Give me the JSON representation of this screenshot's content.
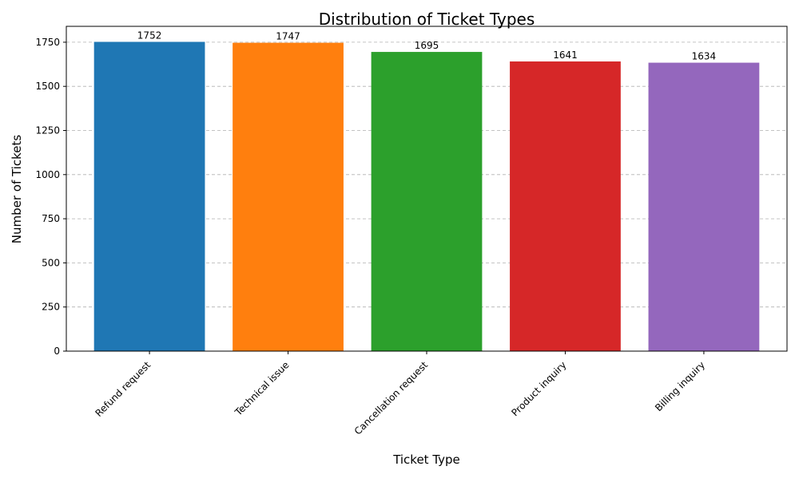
{
  "chart_data": {
    "type": "bar",
    "title": "Distribution of Ticket Types",
    "xlabel": "Ticket Type",
    "ylabel": "Number of Tickets",
    "categories": [
      "Refund request",
      "Technical issue",
      "Cancellation request",
      "Product inquiry",
      "Billing inquiry"
    ],
    "values": [
      1752,
      1747,
      1695,
      1641,
      1634
    ],
    "data_labels": [
      "1752",
      "1747",
      "1695",
      "1641",
      "1634"
    ],
    "colors": [
      "#1f77b4",
      "#ff7f0e",
      "#2ca02c",
      "#d62728",
      "#9467bd"
    ],
    "ylim": [
      0,
      1840
    ],
    "yticks": [
      0,
      250,
      500,
      750,
      1000,
      1250,
      1500,
      1750
    ],
    "ytick_labels": [
      "0",
      "250",
      "500",
      "750",
      "1000",
      "1250",
      "1500",
      "1750"
    ],
    "grid": "y-dashed",
    "legend": "none"
  }
}
